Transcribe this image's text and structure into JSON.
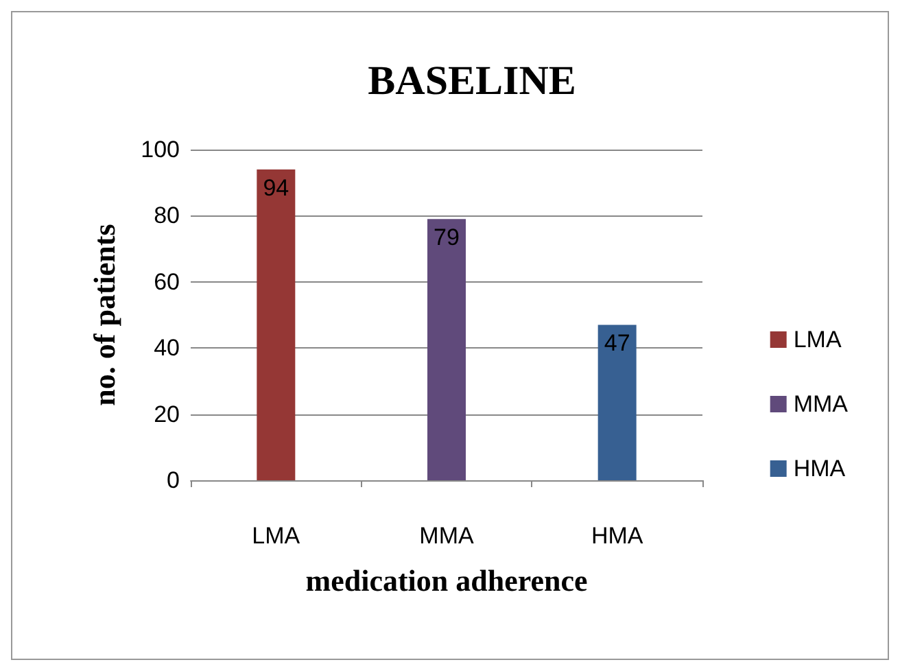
{
  "chart_data": {
    "type": "bar",
    "title": "BASELINE",
    "xlabel": "medication adherence",
    "ylabel": "no. of patients",
    "categories": [
      "LMA",
      "MMA",
      "HMA"
    ],
    "series": [
      {
        "name": "LMA",
        "color": "#953735",
        "values": [
          94,
          null,
          null
        ]
      },
      {
        "name": "MMA",
        "color": "#604a7b",
        "values": [
          null,
          79,
          null
        ]
      },
      {
        "name": "HMA",
        "color": "#376092",
        "values": [
          null,
          null,
          47
        ]
      }
    ],
    "ylim": [
      0,
      100
    ],
    "yticks": [
      0,
      20,
      40,
      60,
      80,
      100
    ],
    "grid": "y",
    "legend": "right",
    "data_labels": true
  }
}
